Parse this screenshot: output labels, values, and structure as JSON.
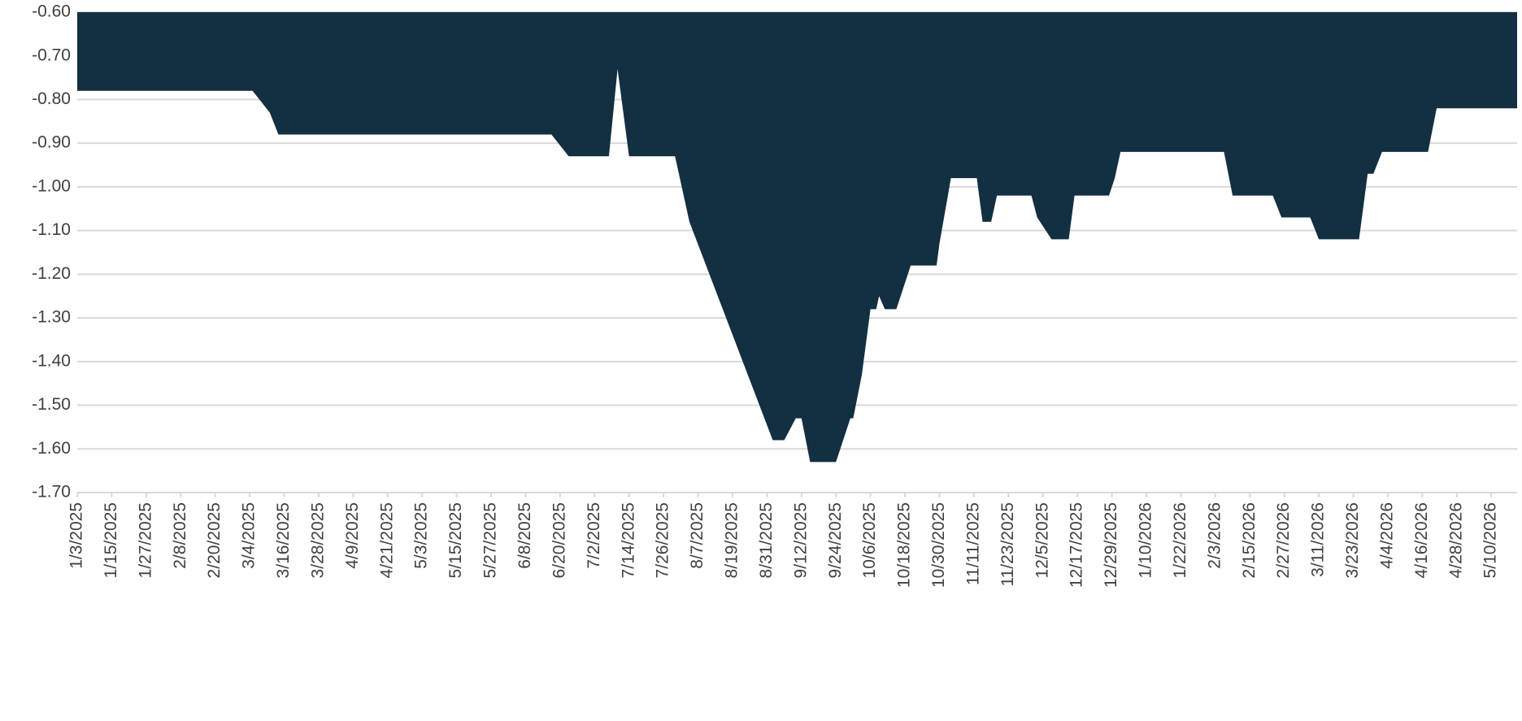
{
  "chart_data": {
    "type": "area",
    "color": "#132f42",
    "grid": true,
    "x": [
      "1/3/2025",
      "3/5/2025",
      "3/11/2025",
      "3/14/2025",
      "6/17/2025",
      "6/23/2025",
      "7/7/2025",
      "7/10/2025",
      "7/14/2025",
      "7/30/2025",
      "8/4/2025",
      "9/2/2025",
      "9/6/2025",
      "9/10/2025",
      "9/12/2025",
      "9/15/2025",
      "9/24/2025",
      "9/29/2025",
      "9/30/2025",
      "10/3/2025",
      "10/6/2025",
      "10/8/2025",
      "10/9/2025",
      "10/11/2025",
      "10/15/2025",
      "10/20/2025",
      "10/29/2025",
      "10/30/2025",
      "11/3/2025",
      "11/12/2025",
      "11/14/2025",
      "11/17/2025",
      "11/19/2025",
      "12/1/2025",
      "12/3/2025",
      "12/8/2025",
      "12/14/2025",
      "12/16/2025",
      "12/28/2025",
      "12/30/2025",
      "1/1/2026",
      "2/6/2026",
      "2/9/2026",
      "2/23/2026",
      "2/26/2026",
      "3/8/2026",
      "3/11/2026",
      "3/25/2026",
      "3/28/2026",
      "3/30/2026",
      "4/2/2026",
      "4/18/2026",
      "4/21/2026",
      "5/19/2026"
    ],
    "values": [
      -0.78,
      -0.78,
      -0.83,
      -0.88,
      -0.88,
      -0.93,
      -0.93,
      -0.73,
      -0.93,
      -0.93,
      -1.08,
      -1.58,
      -1.58,
      -1.53,
      -1.53,
      -1.63,
      -1.63,
      -1.53,
      -1.53,
      -1.43,
      -1.28,
      -1.28,
      -1.25,
      -1.28,
      -1.28,
      -1.18,
      -1.18,
      -1.13,
      -0.98,
      -0.98,
      -1.08,
      -1.08,
      -1.02,
      -1.02,
      -1.07,
      -1.12,
      -1.12,
      -1.02,
      -1.02,
      -0.98,
      -0.92,
      -0.92,
      -1.02,
      -1.02,
      -1.07,
      -1.07,
      -1.12,
      -1.12,
      -0.97,
      -0.97,
      -0.92,
      -0.92,
      -0.82,
      -0.82
    ],
    "xlim": [
      "1/3/2025",
      "5/19/2026"
    ],
    "xticks": [
      "1/3/2025",
      "1/15/2025",
      "1/27/2025",
      "2/8/2025",
      "2/20/2025",
      "3/4/2025",
      "3/16/2025",
      "3/28/2025",
      "4/9/2025",
      "4/21/2025",
      "5/3/2025",
      "5/15/2025",
      "5/27/2025",
      "6/8/2025",
      "6/20/2025",
      "7/2/2025",
      "7/14/2025",
      "7/26/2025",
      "8/7/2025",
      "8/19/2025",
      "8/31/2025",
      "9/12/2025",
      "9/24/2025",
      "10/6/2025",
      "10/18/2025",
      "10/30/2025",
      "11/11/2025",
      "11/23/2025",
      "12/5/2025",
      "12/17/2025",
      "12/29/2025",
      "1/10/2026",
      "1/22/2026",
      "2/3/2026",
      "2/15/2026",
      "2/27/2026",
      "3/11/2026",
      "3/23/2026",
      "4/4/2026",
      "4/16/2026",
      "4/28/2026",
      "5/10/2026"
    ],
    "ylim": [
      -1.7,
      -0.6
    ],
    "yticks": [
      {
        "value": -0.6,
        "label": "-0.60"
      },
      {
        "value": -0.7,
        "label": "-0.70"
      },
      {
        "value": -0.8,
        "label": "-0.80"
      },
      {
        "value": -0.9,
        "label": "-0.90"
      },
      {
        "value": -1.0,
        "label": "-1.00"
      },
      {
        "value": -1.1,
        "label": "-1.10"
      },
      {
        "value": -1.2,
        "label": "-1.20"
      },
      {
        "value": -1.3,
        "label": "-1.30"
      },
      {
        "value": -1.4,
        "label": "-1.40"
      },
      {
        "value": -1.5,
        "label": "-1.50"
      },
      {
        "value": -1.6,
        "label": "-1.60"
      },
      {
        "value": -1.7,
        "label": "-1.70"
      }
    ]
  }
}
